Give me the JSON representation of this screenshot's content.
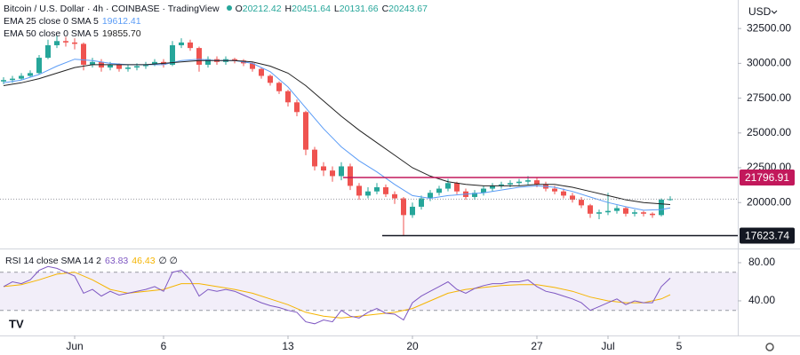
{
  "chart_data": {
    "type": "candlestick",
    "title": "Bitcoin / U.S. Dollar · 4h · COINBASE · TradingView",
    "ohlc_labels": [
      "O",
      "H",
      "L",
      "C"
    ],
    "y_axis_label": "USD",
    "up_color": "#26a69a",
    "down_color": "#ef5350",
    "grid": false,
    "xlim": [
      -4.2,
      37.3
    ],
    "ylim": [
      16700,
      34550
    ],
    "xticks": [
      {
        "value": 0,
        "label": "Jun"
      },
      {
        "value": 5,
        "label": "6"
      },
      {
        "value": 12,
        "label": "13"
      },
      {
        "value": 19,
        "label": "20"
      },
      {
        "value": 26,
        "label": "27"
      },
      {
        "value": 30,
        "label": "Jul"
      },
      {
        "value": 34,
        "label": "5"
      }
    ],
    "yticks": [
      {
        "value": 20000,
        "label": "20000.00"
      },
      {
        "value": 22500,
        "label": "22500.00"
      },
      {
        "value": 25000,
        "label": "25000.00"
      },
      {
        "value": 27500,
        "label": "27500.00"
      },
      {
        "value": 30000,
        "label": "30000.00"
      },
      {
        "value": 32500,
        "label": "32500.00"
      }
    ],
    "x": [
      -4,
      -3.5,
      -3,
      -2.5,
      -2,
      -1.5,
      -1,
      -0.5,
      0,
      0.5,
      1,
      1.5,
      2,
      2.5,
      3,
      3.5,
      4,
      4.5,
      5,
      5.5,
      6,
      6.5,
      7,
      7.5,
      8,
      8.5,
      9,
      9.5,
      10,
      10.5,
      11,
      11.5,
      12,
      12.5,
      13,
      13.5,
      14,
      14.5,
      15,
      15.5,
      16,
      16.5,
      17,
      17.5,
      18,
      18.5,
      19,
      19.5,
      20,
      20.5,
      21,
      21.5,
      22,
      22.5,
      23,
      23.5,
      24,
      24.5,
      25,
      25.5,
      26,
      26.5,
      27,
      27.5,
      28,
      28.5,
      29,
      29.5,
      30,
      30.5,
      31,
      31.5,
      32,
      32.5,
      33,
      33.5
    ],
    "open": [
      28700,
      28800,
      28900,
      29100,
      29300,
      30400,
      31300,
      31600,
      31500,
      31400,
      29900,
      30100,
      29700,
      29900,
      29600,
      29700,
      29800,
      29900,
      30100,
      29900,
      31300,
      31500,
      31100,
      29900,
      30300,
      30100,
      30300,
      30200,
      30000,
      29600,
      29100,
      28600,
      28000,
      27200,
      26500,
      23800,
      22600,
      22300,
      21900,
      22600,
      21200,
      20500,
      20800,
      21100,
      20600,
      20300,
      19100,
      19700,
      20300,
      20700,
      21000,
      21400,
      20800,
      20400,
      20700,
      21000,
      21200,
      21300,
      21400,
      21500,
      21600,
      21300,
      21000,
      20800,
      20500,
      20200,
      19800,
      19200,
      19300,
      19400,
      19600,
      19200,
      19300,
      19200,
      19100,
      20212.42
    ],
    "high": [
      29000,
      29100,
      29300,
      29500,
      30600,
      31700,
      32000,
      31900,
      31800,
      31500,
      30400,
      30300,
      30100,
      30000,
      29900,
      30000,
      30100,
      30300,
      30300,
      31600,
      31800,
      31700,
      31200,
      30500,
      30500,
      30500,
      30400,
      30300,
      30100,
      29700,
      29200,
      28700,
      28100,
      27400,
      26600,
      24000,
      22900,
      22600,
      22900,
      22800,
      21400,
      21100,
      21400,
      21300,
      20800,
      20400,
      20000,
      20500,
      20900,
      21200,
      21700,
      21500,
      21000,
      20900,
      21200,
      21400,
      21500,
      21600,
      21700,
      21900,
      21800,
      21500,
      21200,
      21000,
      20700,
      20400,
      19900,
      19500,
      20700,
      19800,
      19700,
      19500,
      19400,
      19300,
      20300,
      20451.64
    ],
    "low": [
      28500,
      28600,
      28800,
      29000,
      29200,
      30300,
      31100,
      31200,
      31000,
      29500,
      29700,
      29400,
      29500,
      29400,
      29400,
      29500,
      29600,
      29800,
      29700,
      29800,
      31100,
      30900,
      29400,
      29700,
      29900,
      29900,
      30000,
      29800,
      29400,
      28900,
      28400,
      27800,
      26900,
      26200,
      23400,
      22300,
      21900,
      21500,
      21600,
      20900,
      20200,
      20300,
      20600,
      20400,
      19900,
      17623.74,
      18900,
      19500,
      20100,
      20500,
      20800,
      20600,
      20200,
      20200,
      20500,
      20800,
      21000,
      21100,
      21200,
      21300,
      21100,
      20800,
      20600,
      20300,
      20000,
      19600,
      18900,
      18800,
      19100,
      19200,
      19000,
      19000,
      19000,
      18900,
      19000,
      20131.66
    ],
    "close": [
      28800,
      28900,
      29100,
      29300,
      30400,
      31300,
      31600,
      31500,
      31400,
      29900,
      30100,
      29700,
      29900,
      29600,
      29700,
      29800,
      29900,
      30100,
      29900,
      31300,
      31500,
      31100,
      29900,
      30300,
      30100,
      30300,
      30200,
      30000,
      29600,
      29100,
      28600,
      28000,
      27200,
      26500,
      23800,
      22600,
      22300,
      21900,
      22600,
      21200,
      20500,
      20800,
      21100,
      20600,
      20300,
      19100,
      19700,
      20300,
      20700,
      21000,
      21400,
      20800,
      20400,
      20700,
      21000,
      21200,
      21300,
      21400,
      21500,
      21600,
      21300,
      21000,
      20800,
      20500,
      20200,
      19800,
      19200,
      19300,
      19400,
      19600,
      19200,
      19300,
      19200,
      19100,
      20212.42,
      20243.67
    ],
    "indicators": [
      {
        "name": "EMA 25 close 0 SMA 5",
        "color": "#5b9cf6",
        "last_label": "19612.41",
        "x": [
          -4,
          -3,
          -2,
          -1,
          0,
          1,
          2,
          3,
          4,
          5,
          6,
          7,
          8,
          9,
          10,
          11,
          12,
          13,
          14,
          15,
          16,
          17,
          18,
          19,
          20,
          21,
          22,
          23,
          24,
          25,
          26,
          27,
          28,
          29,
          30,
          31,
          32,
          33,
          33.5
        ],
        "values": [
          28600,
          28800,
          29200,
          29800,
          30300,
          30200,
          30000,
          29900,
          29900,
          29900,
          30200,
          30300,
          30200,
          30200,
          30000,
          29400,
          28300,
          26800,
          25300,
          24000,
          23000,
          22200,
          21300,
          20500,
          20300,
          20500,
          20600,
          20700,
          20900,
          21100,
          21200,
          21100,
          20800,
          20400,
          20000,
          19700,
          19450,
          19500,
          19612.41
        ]
      },
      {
        "name": "EMA 50 close 0 SMA 5",
        "color": "#222222",
        "last_label": "19855.70",
        "x": [
          -4,
          -3,
          -2,
          -1,
          0,
          1,
          2,
          3,
          4,
          5,
          6,
          7,
          8,
          9,
          10,
          11,
          12,
          13,
          14,
          15,
          16,
          17,
          18,
          19,
          20,
          21,
          22,
          23,
          24,
          25,
          26,
          27,
          28,
          29,
          30,
          31,
          32,
          33,
          33.5
        ],
        "values": [
          28400,
          28600,
          28900,
          29300,
          29700,
          29900,
          29900,
          29900,
          29900,
          30000,
          30100,
          30200,
          30200,
          30200,
          30100,
          29800,
          29300,
          28400,
          27300,
          26200,
          25200,
          24300,
          23400,
          22500,
          21900,
          21500,
          21300,
          21200,
          21200,
          21200,
          21300,
          21300,
          21100,
          20800,
          20500,
          20200,
          20000,
          19900,
          19855.7
        ]
      }
    ],
    "levels": [
      {
        "value": 21796.91,
        "color": "#c2185b",
        "x_start": 15.1
      },
      {
        "value": 17623.74,
        "color": "#131722",
        "x_start": 17.3
      }
    ],
    "rsi": {
      "title": "RSI 14 close SMA 14 2",
      "extra": "∅ ∅",
      "color": "#7e57c2",
      "ylim": [
        3.7,
        93
      ],
      "yticks": [
        {
          "value": 40,
          "label": "40.00"
        },
        {
          "value": 80,
          "label": "80.00"
        }
      ],
      "band": [
        30,
        70
      ],
      "values": [
        55,
        60,
        58,
        62,
        72,
        76,
        74,
        70,
        66,
        48,
        52,
        45,
        50,
        46,
        48,
        50,
        52,
        55,
        50,
        70,
        72,
        62,
        45,
        52,
        50,
        52,
        50,
        46,
        42,
        38,
        35,
        33,
        30,
        28,
        18,
        16,
        20,
        18,
        30,
        24,
        22,
        28,
        32,
        27,
        26,
        20,
        38,
        45,
        50,
        55,
        60,
        52,
        48,
        53,
        56,
        58,
        58,
        60,
        60,
        62,
        55,
        50,
        48,
        45,
        42,
        38,
        30,
        34,
        38,
        42,
        36,
        40,
        38,
        38,
        55,
        63.83
      ],
      "ma": {
        "color": "#f5b400",
        "x": [
          -4,
          -3,
          -2,
          -1,
          0,
          1,
          2,
          3,
          4,
          5,
          6,
          7,
          8,
          9,
          10,
          11,
          12,
          13,
          14,
          15,
          16,
          17,
          18,
          19,
          20,
          21,
          22,
          23,
          24,
          25,
          26,
          27,
          28,
          29,
          30,
          31,
          32,
          33,
          33.5
        ],
        "values": [
          55,
          57,
          62,
          68,
          70,
          62,
          52,
          48,
          50,
          52,
          58,
          58,
          55,
          52,
          48,
          42,
          36,
          28,
          24,
          22,
          24,
          26,
          28,
          32,
          40,
          48,
          52,
          54,
          56,
          57,
          57,
          54,
          50,
          44,
          40,
          38,
          38,
          42,
          46.43
        ]
      }
    }
  }
}
